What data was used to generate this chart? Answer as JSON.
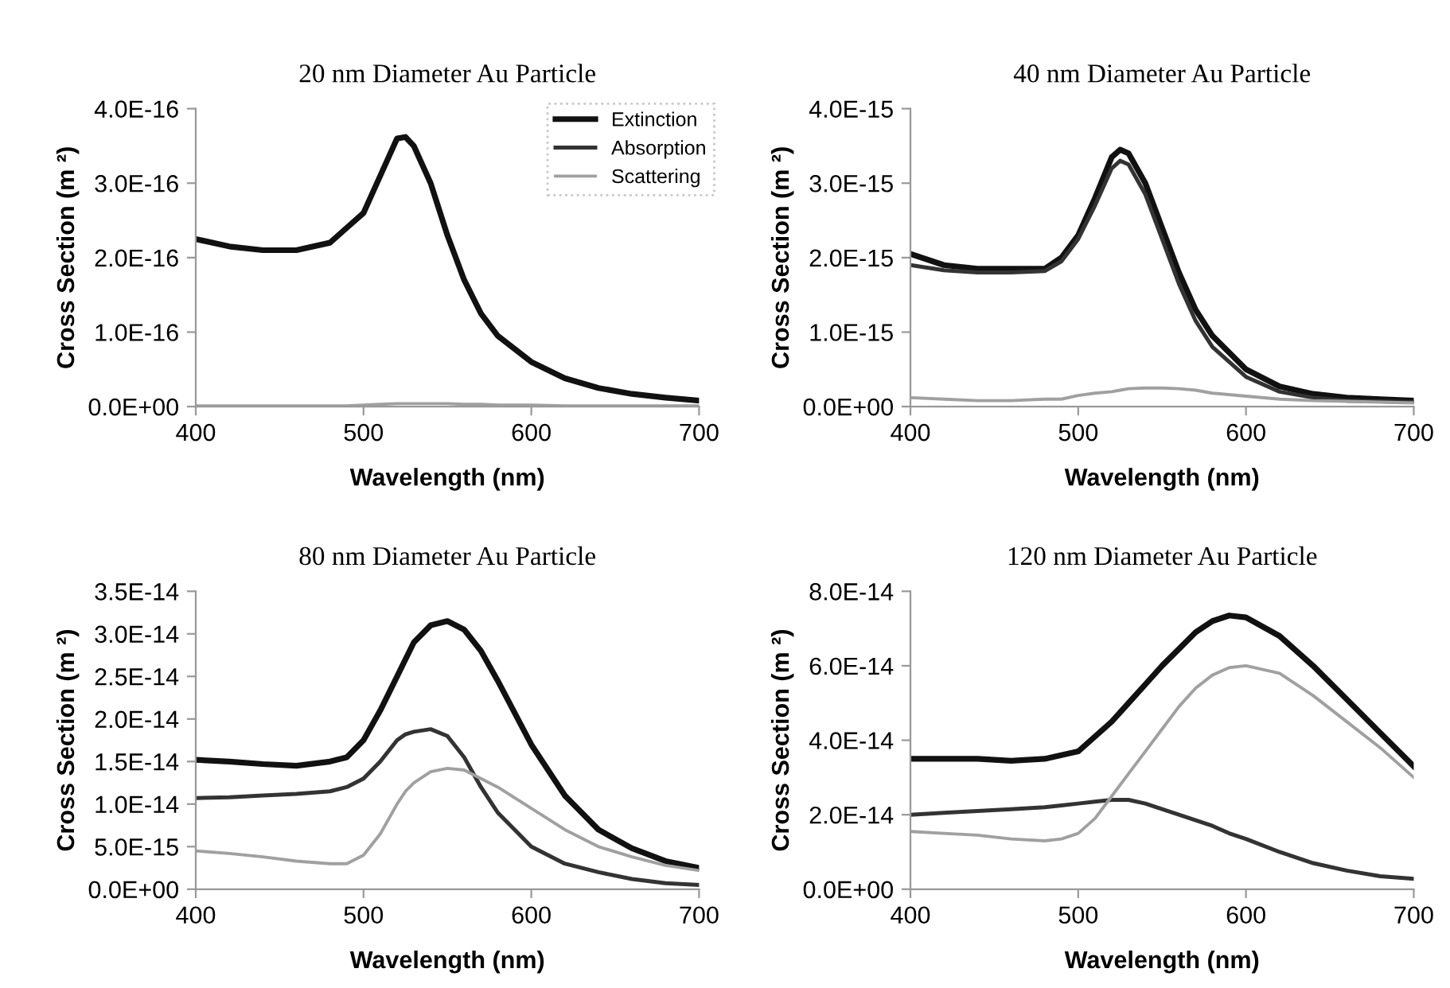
{
  "chart_data": [
    {
      "type": "line",
      "title": "20 nm Diameter Au Particle",
      "xlabel": "Wavelength (nm)",
      "ylabel": "Cross Section (m ²)",
      "legend": "top right",
      "grid": false,
      "x": [
        400,
        420,
        440,
        460,
        480,
        490,
        500,
        510,
        520,
        525,
        530,
        540,
        550,
        560,
        570,
        580,
        600,
        620,
        640,
        660,
        680,
        700
      ],
      "xlim": [
        400,
        700
      ],
      "xticks": [
        400,
        500,
        600,
        700
      ],
      "ylim": [
        0,
        4e-16
      ],
      "yticks": [
        {
          "value": 0,
          "label": "0.0E+00"
        },
        {
          "value": 1e-16,
          "label": "1.0E-16"
        },
        {
          "value": 2e-16,
          "label": "2.0E-16"
        },
        {
          "value": 3e-16,
          "label": "3.0E-16"
        },
        {
          "value": 4e-16,
          "label": "4.0E-16"
        }
      ],
      "series": [
        {
          "name": "Extinction",
          "color": "#111111",
          "values": [
            2.25e-16,
            2.15e-16,
            2.1e-16,
            2.1e-16,
            2.2e-16,
            2.4e-16,
            2.6e-16,
            3.1e-16,
            3.6e-16,
            3.62e-16,
            3.5e-16,
            3e-16,
            2.3e-16,
            1.7e-16,
            1.25e-16,
            9.5e-17,
            6e-17,
            3.8e-17,
            2.5e-17,
            1.7e-17,
            1.2e-17,
            8e-18
          ]
        },
        {
          "name": "Absorption",
          "color": "#333333",
          "values": [
            null,
            null,
            null,
            null,
            null,
            null,
            null,
            null,
            null,
            null,
            null,
            null,
            null,
            null,
            null,
            null,
            null,
            null,
            null,
            null,
            null,
            null
          ]
        },
        {
          "name": "Scattering",
          "color": "#a0a0a0",
          "values": [
            1e-18,
            1e-18,
            1e-18,
            1e-18,
            1e-18,
            1e-18,
            2e-18,
            3e-18,
            4e-18,
            4e-18,
            4e-18,
            4e-18,
            4e-18,
            3e-18,
            3e-18,
            2e-18,
            2e-18,
            1e-18,
            1e-18,
            1e-18,
            1e-18,
            1e-18
          ]
        }
      ]
    },
    {
      "type": "line",
      "title": "40 nm Diameter Au Particle",
      "xlabel": "Wavelength (nm)",
      "ylabel": "Cross Section (m ²)",
      "grid": false,
      "x": [
        400,
        420,
        440,
        460,
        480,
        490,
        500,
        510,
        520,
        525,
        530,
        540,
        550,
        560,
        570,
        580,
        600,
        620,
        640,
        660,
        680,
        700
      ],
      "xlim": [
        400,
        700
      ],
      "xticks": [
        400,
        500,
        600,
        700
      ],
      "ylim": [
        0,
        4e-15
      ],
      "yticks": [
        {
          "value": 0,
          "label": "0.0E+00"
        },
        {
          "value": 1e-15,
          "label": "1.0E-15"
        },
        {
          "value": 2e-15,
          "label": "2.0E-15"
        },
        {
          "value": 3e-15,
          "label": "3.0E-15"
        },
        {
          "value": 4e-15,
          "label": "4.0E-15"
        }
      ],
      "series": [
        {
          "color": "#111111",
          "values": [
            2.05e-15,
            1.9e-15,
            1.85e-15,
            1.85e-15,
            1.85e-15,
            2e-15,
            2.3e-15,
            2.8e-15,
            3.35e-15,
            3.45e-15,
            3.4e-15,
            3e-15,
            2.4e-15,
            1.8e-15,
            1.3e-15,
            9.5e-16,
            5e-16,
            2.7e-16,
            1.7e-16,
            1.2e-16,
            1e-16,
            8e-17
          ]
        },
        {
          "color": "#333333",
          "values": [
            1.9e-15,
            1.83e-15,
            1.8e-15,
            1.8e-15,
            1.82e-15,
            1.95e-15,
            2.25e-15,
            2.7e-15,
            3.2e-15,
            3.3e-15,
            3.25e-15,
            2.85e-15,
            2.25e-15,
            1.65e-15,
            1.15e-15,
            8e-16,
            4e-16,
            2e-16,
            1.2e-16,
            8e-17,
            7e-17,
            6e-17
          ]
        },
        {
          "color": "#a0a0a0",
          "values": [
            1.2e-16,
            1e-16,
            8e-17,
            8e-17,
            1e-16,
            1e-16,
            1.5e-16,
            1.8e-16,
            2e-16,
            2.2e-16,
            2.4e-16,
            2.5e-16,
            2.5e-16,
            2.4e-16,
            2.2e-16,
            1.8e-16,
            1.4e-16,
            1e-16,
            8e-17,
            7e-17,
            6e-17,
            5e-17
          ]
        }
      ]
    },
    {
      "type": "line",
      "title": "80 nm Diameter Au Particle",
      "xlabel": "Wavelength (nm)",
      "ylabel": "Cross Section (m ²)",
      "grid": false,
      "x": [
        400,
        420,
        440,
        460,
        480,
        490,
        500,
        510,
        520,
        525,
        530,
        540,
        550,
        560,
        570,
        580,
        600,
        620,
        640,
        660,
        680,
        700
      ],
      "xlim": [
        400,
        700
      ],
      "xticks": [
        400,
        500,
        600,
        700
      ],
      "ylim": [
        0,
        3.5e-14
      ],
      "yticks": [
        {
          "value": 0,
          "label": "0.0E+00"
        },
        {
          "value": 5e-15,
          "label": "5.0E-15"
        },
        {
          "value": 1e-14,
          "label": "1.0E-14"
        },
        {
          "value": 1.5e-14,
          "label": "1.5E-14"
        },
        {
          "value": 2e-14,
          "label": "2.0E-14"
        },
        {
          "value": 2.5e-14,
          "label": "2.5E-14"
        },
        {
          "value": 3e-14,
          "label": "3.0E-14"
        },
        {
          "value": 3.5e-14,
          "label": "3.5E-14"
        }
      ],
      "series": [
        {
          "color": "#111111",
          "values": [
            1.52e-14,
            1.5e-14,
            1.47e-14,
            1.45e-14,
            1.5e-14,
            1.55e-14,
            1.75e-14,
            2.1e-14,
            2.5e-14,
            2.7e-14,
            2.9e-14,
            3.1e-14,
            3.15e-14,
            3.05e-14,
            2.8e-14,
            2.45e-14,
            1.7e-14,
            1.1e-14,
            7e-15,
            4.8e-15,
            3.3e-15,
            2.5e-15
          ]
        },
        {
          "color": "#333333",
          "values": [
            1.07e-14,
            1.08e-14,
            1.1e-14,
            1.12e-14,
            1.15e-14,
            1.2e-14,
            1.3e-14,
            1.5e-14,
            1.75e-14,
            1.82e-14,
            1.85e-14,
            1.88e-14,
            1.8e-14,
            1.55e-14,
            1.2e-14,
            9e-15,
            5e-15,
            3e-15,
            2e-15,
            1.2e-15,
            7e-16,
            5e-16
          ]
        },
        {
          "color": "#a0a0a0",
          "values": [
            4.5e-15,
            4.2e-15,
            3.8e-15,
            3.3e-15,
            3e-15,
            3e-15,
            4e-15,
            6.5e-15,
            1e-14,
            1.15e-14,
            1.25e-14,
            1.38e-14,
            1.42e-14,
            1.4e-14,
            1.3e-14,
            1.2e-14,
            9.5e-15,
            7e-15,
            5e-15,
            3.8e-15,
            2.8e-15,
            2.2e-15
          ]
        }
      ]
    },
    {
      "type": "line",
      "title": "120 nm Diameter Au Particle",
      "xlabel": "Wavelength (nm)",
      "ylabel": "Cross Section (m ²)",
      "grid": false,
      "x": [
        400,
        420,
        440,
        460,
        480,
        490,
        500,
        510,
        520,
        530,
        540,
        550,
        560,
        570,
        580,
        590,
        600,
        620,
        640,
        660,
        680,
        700
      ],
      "xlim": [
        400,
        700
      ],
      "xticks": [
        400,
        500,
        600,
        700
      ],
      "ylim": [
        0,
        8e-14
      ],
      "yticks": [
        {
          "value": 0,
          "label": "0.0E+00"
        },
        {
          "value": 2e-14,
          "label": "2.0E-14"
        },
        {
          "value": 4e-14,
          "label": "4.0E-14"
        },
        {
          "value": 6e-14,
          "label": "6.0E-14"
        },
        {
          "value": 8e-14,
          "label": "8.0E-14"
        }
      ],
      "series": [
        {
          "color": "#111111",
          "values": [
            3.5e-14,
            3.5e-14,
            3.5e-14,
            3.45e-14,
            3.5e-14,
            3.6e-14,
            3.7e-14,
            4.1e-14,
            4.5e-14,
            5e-14,
            5.5e-14,
            6e-14,
            6.45e-14,
            6.9e-14,
            7.2e-14,
            7.35e-14,
            7.3e-14,
            6.8e-14,
            6e-14,
            5.1e-14,
            4.2e-14,
            3.3e-14
          ]
        },
        {
          "color": "#333333",
          "values": [
            2e-14,
            2.05e-14,
            2.1e-14,
            2.15e-14,
            2.2e-14,
            2.25e-14,
            2.3e-14,
            2.35e-14,
            2.4e-14,
            2.4e-14,
            2.3e-14,
            2.15e-14,
            2e-14,
            1.85e-14,
            1.7e-14,
            1.5e-14,
            1.35e-14,
            1e-14,
            7e-15,
            5e-15,
            3.5e-15,
            2.8e-15
          ]
        },
        {
          "color": "#a0a0a0",
          "values": [
            1.55e-14,
            1.5e-14,
            1.45e-14,
            1.35e-14,
            1.3e-14,
            1.35e-14,
            1.5e-14,
            1.9e-14,
            2.5e-14,
            3.1e-14,
            3.7e-14,
            4.3e-14,
            4.9e-14,
            5.4e-14,
            5.75e-14,
            5.95e-14,
            6e-14,
            5.8e-14,
            5.2e-14,
            4.5e-14,
            3.8e-14,
            3e-14
          ]
        }
      ]
    }
  ]
}
